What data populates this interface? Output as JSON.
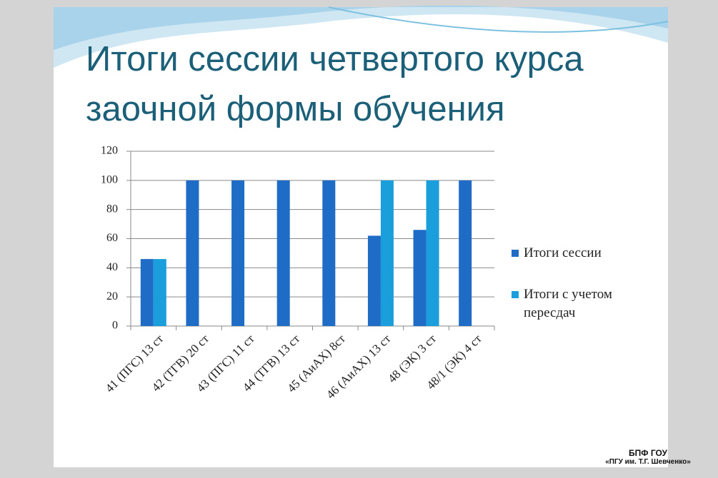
{
  "chart_data": {
    "type": "bar",
    "title": "Итоги сессии четвертого курса заочной формы обучения",
    "categories": [
      "41 (ПГС) 13 ст",
      "42 (ТГВ) 20 ст",
      "43 (ПГС) 11 ст",
      "44 (ТГВ) 13 ст",
      "45 (АиАХ) 8ст",
      "46 (АиАХ) 13 ст",
      "48 (ЭК) 3 ст",
      "48/1 (ЭК) 4 ст"
    ],
    "series": [
      {
        "name": "Итоги сессии",
        "color": "#1f6cc6",
        "values": [
          46,
          100,
          100,
          100,
          100,
          62,
          66,
          100
        ]
      },
      {
        "name": "Итоги с учетом пересдач",
        "color": "#1b9fdc",
        "values": [
          46,
          null,
          null,
          null,
          null,
          100,
          100,
          null
        ]
      }
    ],
    "ylim": [
      0,
      120
    ],
    "yticks": [
      0,
      20,
      40,
      60,
      80,
      100,
      120
    ],
    "grid": true,
    "legend": "right"
  },
  "logo": {
    "line1": "БПФ ГОУ",
    "line2": "«ПГУ им. Т.Г. Шевченко»"
  }
}
